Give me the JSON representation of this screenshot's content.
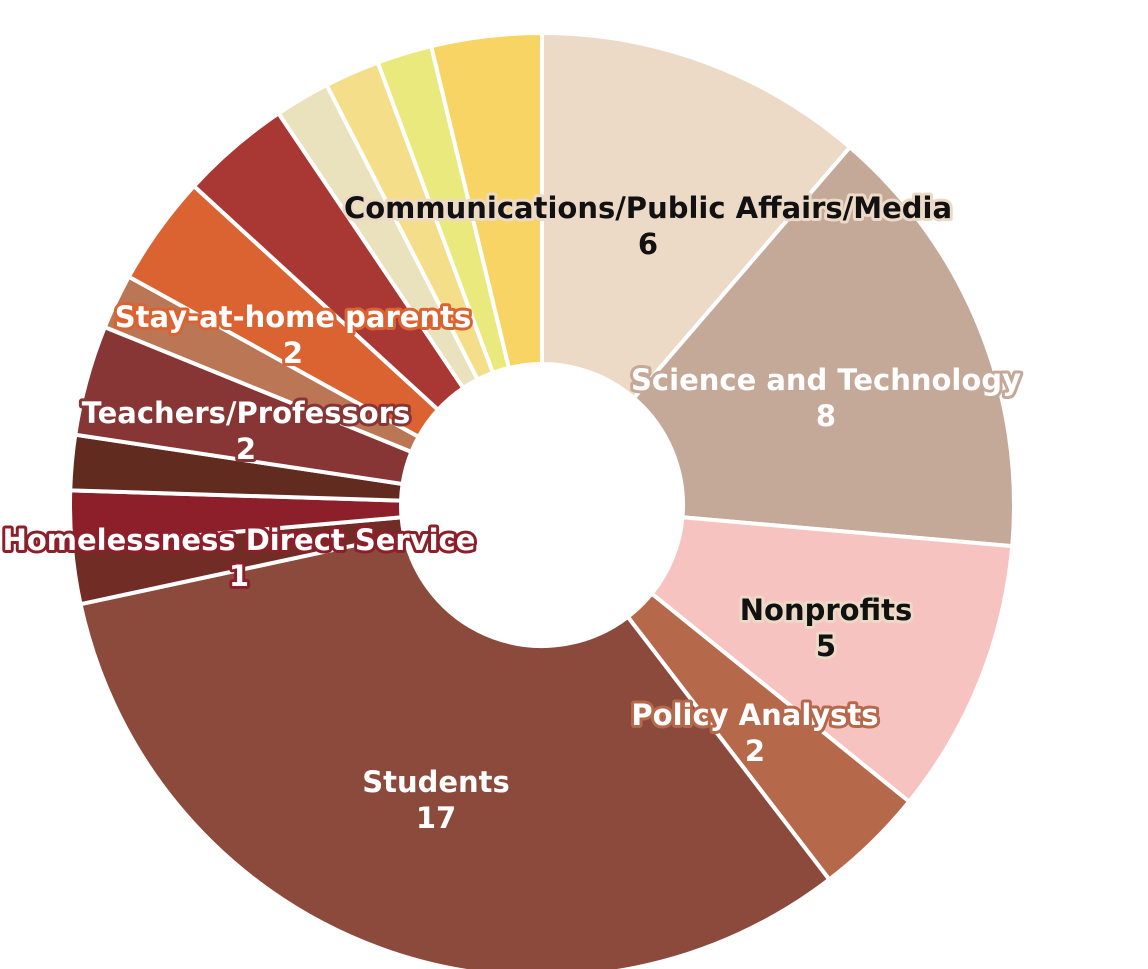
{
  "chart_data": {
    "type": "pie",
    "donut": true,
    "start": "12 o'clock",
    "direction": "clockwise",
    "slices": [
      {
        "label": "Communications/Public Affairs/Media",
        "value": 6,
        "color": "#ecd9c6",
        "label_visible": true,
        "label_theme": "dark"
      },
      {
        "label": "Science and Technology",
        "value": 8,
        "color": "#c4a898",
        "label_visible": true,
        "label_theme": "light"
      },
      {
        "label": "Nonprofits",
        "value": 5,
        "color": "#f7c3c0",
        "label_visible": true,
        "label_theme": "dark"
      },
      {
        "label": "Policy Analysts",
        "value": 2,
        "color": "#b5684a",
        "label_visible": true,
        "label_theme": "light"
      },
      {
        "label": "Students",
        "value": 17,
        "color": "#8b4a3c",
        "label_visible": true,
        "label_theme": "light"
      },
      {
        "label": "",
        "value": 1.05,
        "color": "#722c26",
        "label_visible": false
      },
      {
        "label": "Homelessness Direct Service",
        "value": 1,
        "color": "#8c1f2a",
        "label_visible": true,
        "label_theme": "light"
      },
      {
        "label": "",
        "value": 1,
        "color": "#612b20",
        "label_visible": false
      },
      {
        "label": "Teachers/Professors",
        "value": 2,
        "color": "#883535",
        "label_visible": true,
        "label_theme": "light"
      },
      {
        "label": "",
        "value": 1,
        "color": "#bb7656",
        "label_visible": false
      },
      {
        "label": "Stay-at-home parents",
        "value": 2,
        "color": "#db6331",
        "label_visible": true,
        "label_theme": "light"
      },
      {
        "label": "",
        "value": 2,
        "color": "#a93734",
        "label_visible": false
      },
      {
        "label": "",
        "value": 1,
        "color": "#e9e2bd",
        "label_visible": false
      },
      {
        "label": "",
        "value": 1,
        "color": "#f5de8a",
        "label_visible": false
      },
      {
        "label": "",
        "value": 1,
        "color": "#eae97d",
        "label_visible": false
      },
      {
        "label": "",
        "value": 2,
        "color": "#f7d463",
        "label_visible": false
      }
    ]
  }
}
